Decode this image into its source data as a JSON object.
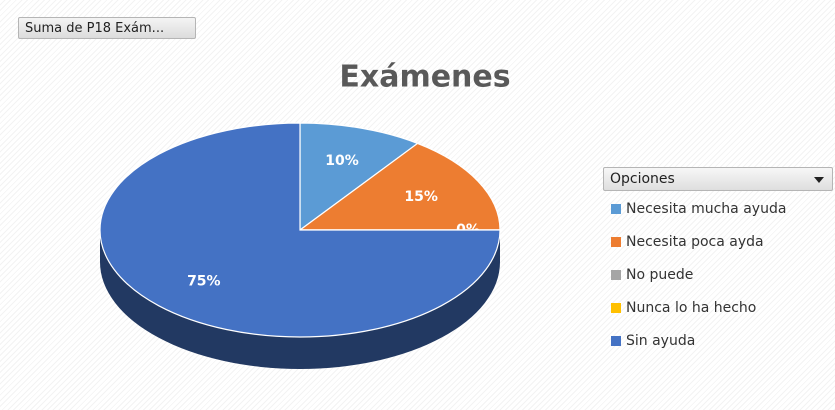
{
  "chart_data": {
    "type": "pie",
    "button": "Suma de P18 Exám...",
    "title": "Exámenes",
    "legend_title": "Opciones",
    "categories": [
      "Necesita mucha ayuda",
      "Necesita poca ayda",
      "No puede",
      "Nunca lo ha hecho",
      "Sin ayuda"
    ],
    "values": [
      10,
      15,
      0,
      0,
      75
    ],
    "value_labels": [
      "10%",
      "15%",
      "0%",
      null,
      "75%"
    ],
    "colors": [
      "#5b9bd5",
      "#ed7d31",
      "#a5a5a5",
      "#ffc000",
      "#4472c4"
    ],
    "legend": "right"
  }
}
